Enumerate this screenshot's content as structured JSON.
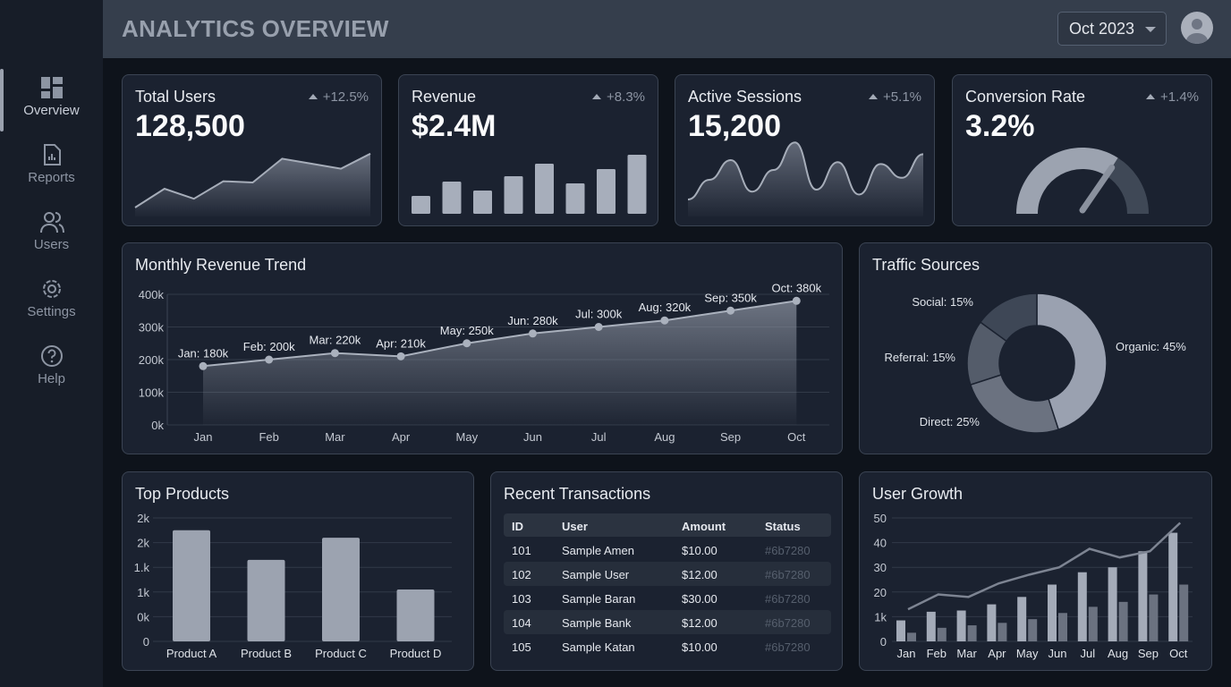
{
  "header": {
    "title": "ANALYTICS OVERVIEW",
    "date_selector": "Oct 2023"
  },
  "sidebar": {
    "items": [
      {
        "label": "Overview",
        "icon": "dashboard-icon",
        "active": true
      },
      {
        "label": "Reports",
        "icon": "report-icon"
      },
      {
        "label": "Users",
        "icon": "users-icon"
      },
      {
        "label": "Settings",
        "icon": "gear-icon"
      },
      {
        "label": "Help",
        "icon": "help-icon"
      }
    ]
  },
  "kpis": [
    {
      "title": "Total Users",
      "value": "128,500",
      "delta": "+12.5%"
    },
    {
      "title": "Revenue",
      "value": "$2.4M",
      "delta": "+8.3%"
    },
    {
      "title": "Active Sessions",
      "value": "15,200",
      "delta": "+5.1%"
    },
    {
      "title": "Conversion Rate",
      "value": "3.2%",
      "delta": "+1.4%",
      "gauge_fill": 0.68
    }
  ],
  "colors": {
    "accent": "#9aa1b0",
    "muted": "#6b7280",
    "card": "#1b2230"
  },
  "chart_data": [
    {
      "type": "line",
      "title": "Monthly Revenue Trend",
      "categories": [
        "Jan",
        "Feb",
        "Mar",
        "Apr",
        "May",
        "Jun",
        "Jul",
        "Aug",
        "Sep",
        "Oct"
      ],
      "values": [
        180,
        200,
        220,
        210,
        250,
        280,
        300,
        320,
        350,
        380
      ],
      "data_labels": [
        "Jan: 180k",
        "Feb: 200k",
        "Mar: 220k",
        "Apr: 210k",
        "May: 250k",
        "Jun: 280k",
        "Jul: 300k",
        "Aug: 320k",
        "Sep: 350k",
        "Oct: 380k"
      ],
      "yticks": [
        "0k",
        "100k",
        "200k",
        "300k",
        "400k"
      ],
      "ylim": [
        0,
        400
      ],
      "grid": true
    },
    {
      "type": "pie",
      "title": "Traffic Sources",
      "labels": [
        "Organic: 45%",
        "Direct: 25%",
        "Referral: 15%",
        "Social: 15%"
      ],
      "values": [
        45,
        25,
        15,
        15
      ],
      "colors": [
        "#9aa1b0",
        "#6b7280",
        "#545c6a",
        "#3e4756"
      ]
    },
    {
      "type": "bar",
      "title": "Top Products",
      "categories": [
        "Product A",
        "Product B",
        "Product C",
        "Product D"
      ],
      "values": [
        1800,
        1320,
        1680,
        840
      ],
      "yticks": [
        "0",
        "0k",
        "1k",
        "1.k",
        "2k",
        "2k"
      ],
      "ylim": [
        0,
        2000
      ],
      "grid": true
    },
    {
      "type": "bar",
      "title": "User Growth",
      "categories": [
        "Jan",
        "Feb",
        "Mar",
        "Apr",
        "May",
        "Jun",
        "Jul",
        "Aug",
        "Sep",
        "Oct"
      ],
      "yticks": [
        "0",
        "1k",
        "20",
        "30",
        "40",
        "50"
      ],
      "ylim": [
        0,
        50
      ],
      "grid": true,
      "series": [
        {
          "values": [
            8.5,
            12,
            12.5,
            15,
            18,
            23,
            28,
            30,
            36.5,
            44
          ]
        },
        {
          "values": [
            3.5,
            5.5,
            6.5,
            7.5,
            9,
            11.5,
            14,
            16,
            19,
            23
          ]
        },
        {
          "type": "line",
          "values": [
            13,
            19,
            18,
            23.5,
            27,
            30,
            37.5,
            34,
            36.5,
            48
          ]
        }
      ]
    }
  ],
  "sparklines": {
    "total_users": [
      5,
      20,
      12,
      26,
      25,
      44,
      40,
      36,
      48
    ],
    "revenue_bars": [
      20,
      36,
      26,
      42,
      56,
      34,
      50,
      66
    ],
    "sessions": [
      10,
      30,
      50,
      18,
      40,
      68,
      20,
      48,
      15,
      46,
      32,
      56
    ]
  },
  "transactions": {
    "title": "Recent Transactions",
    "headers": [
      "ID",
      "User",
      "Amount",
      "Status"
    ],
    "rows": [
      [
        "101",
        "Sample Amen",
        "$10.00",
        "#6b7280"
      ],
      [
        "102",
        "Sample User",
        "$12.00",
        "#6b7280"
      ],
      [
        "103",
        "Sample Baran",
        "$30.00",
        "#6b7280"
      ],
      [
        "104",
        "Sample Bank",
        "$12.00",
        "#6b7280"
      ],
      [
        "105",
        "Sample Katan",
        "$10.00",
        "#6b7280"
      ]
    ]
  }
}
